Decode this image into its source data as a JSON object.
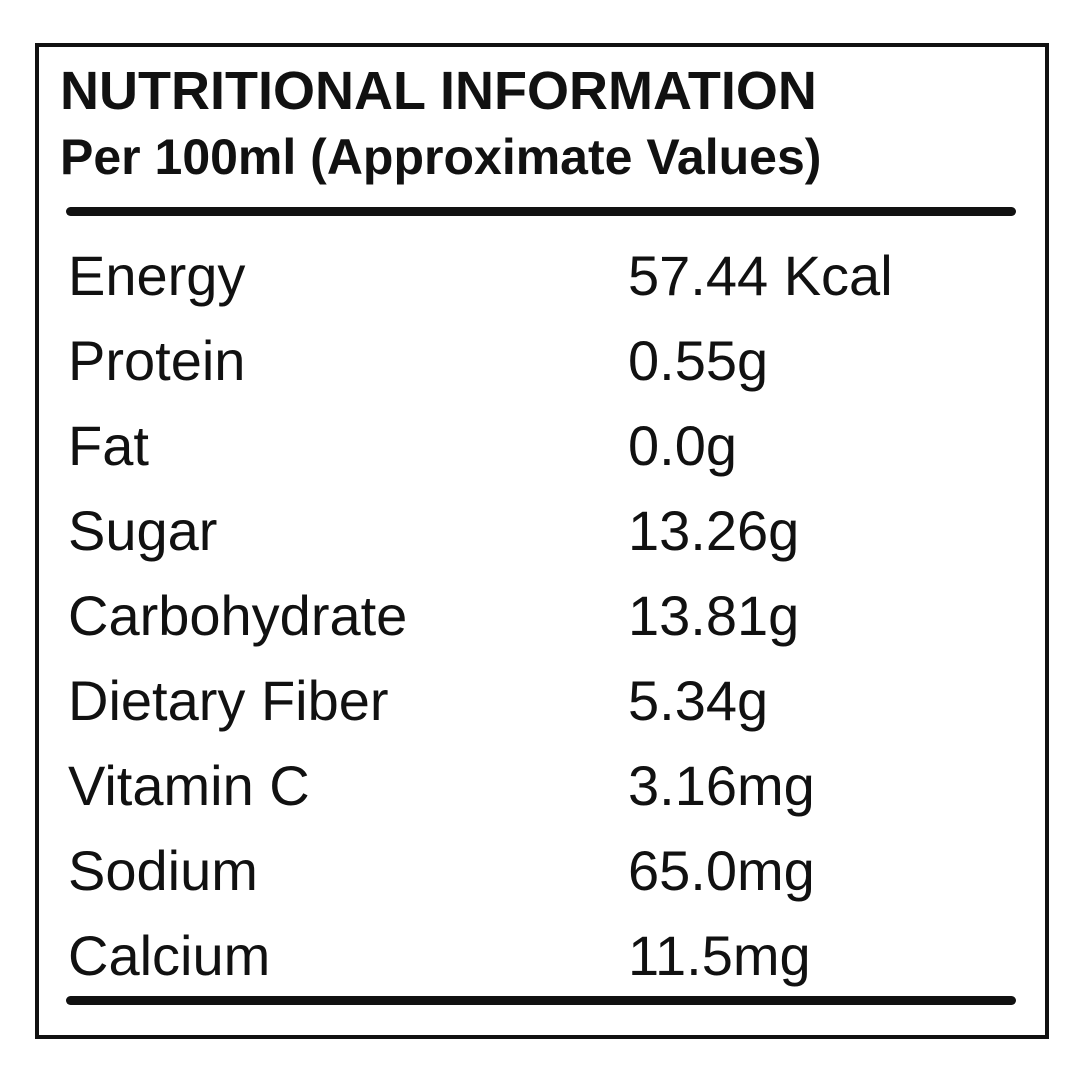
{
  "header": {
    "title": "NUTRITIONAL INFORMATION",
    "subtitle": "Per 100ml (Approximate Values)"
  },
  "table": {
    "rows": [
      [
        "Energy",
        "57.44 Kcal"
      ],
      [
        "Protein",
        "0.55g"
      ],
      [
        "Fat",
        "0.0g"
      ],
      [
        "Sugar",
        "13.26g"
      ],
      [
        "Carbohydrate",
        "13.81g"
      ],
      [
        "Dietary Fiber",
        "5.34g"
      ],
      [
        "Vitamin C",
        "3.16mg"
      ],
      [
        "Sodium",
        "65.0mg"
      ],
      [
        "Calcium",
        "11.5mg"
      ]
    ]
  }
}
